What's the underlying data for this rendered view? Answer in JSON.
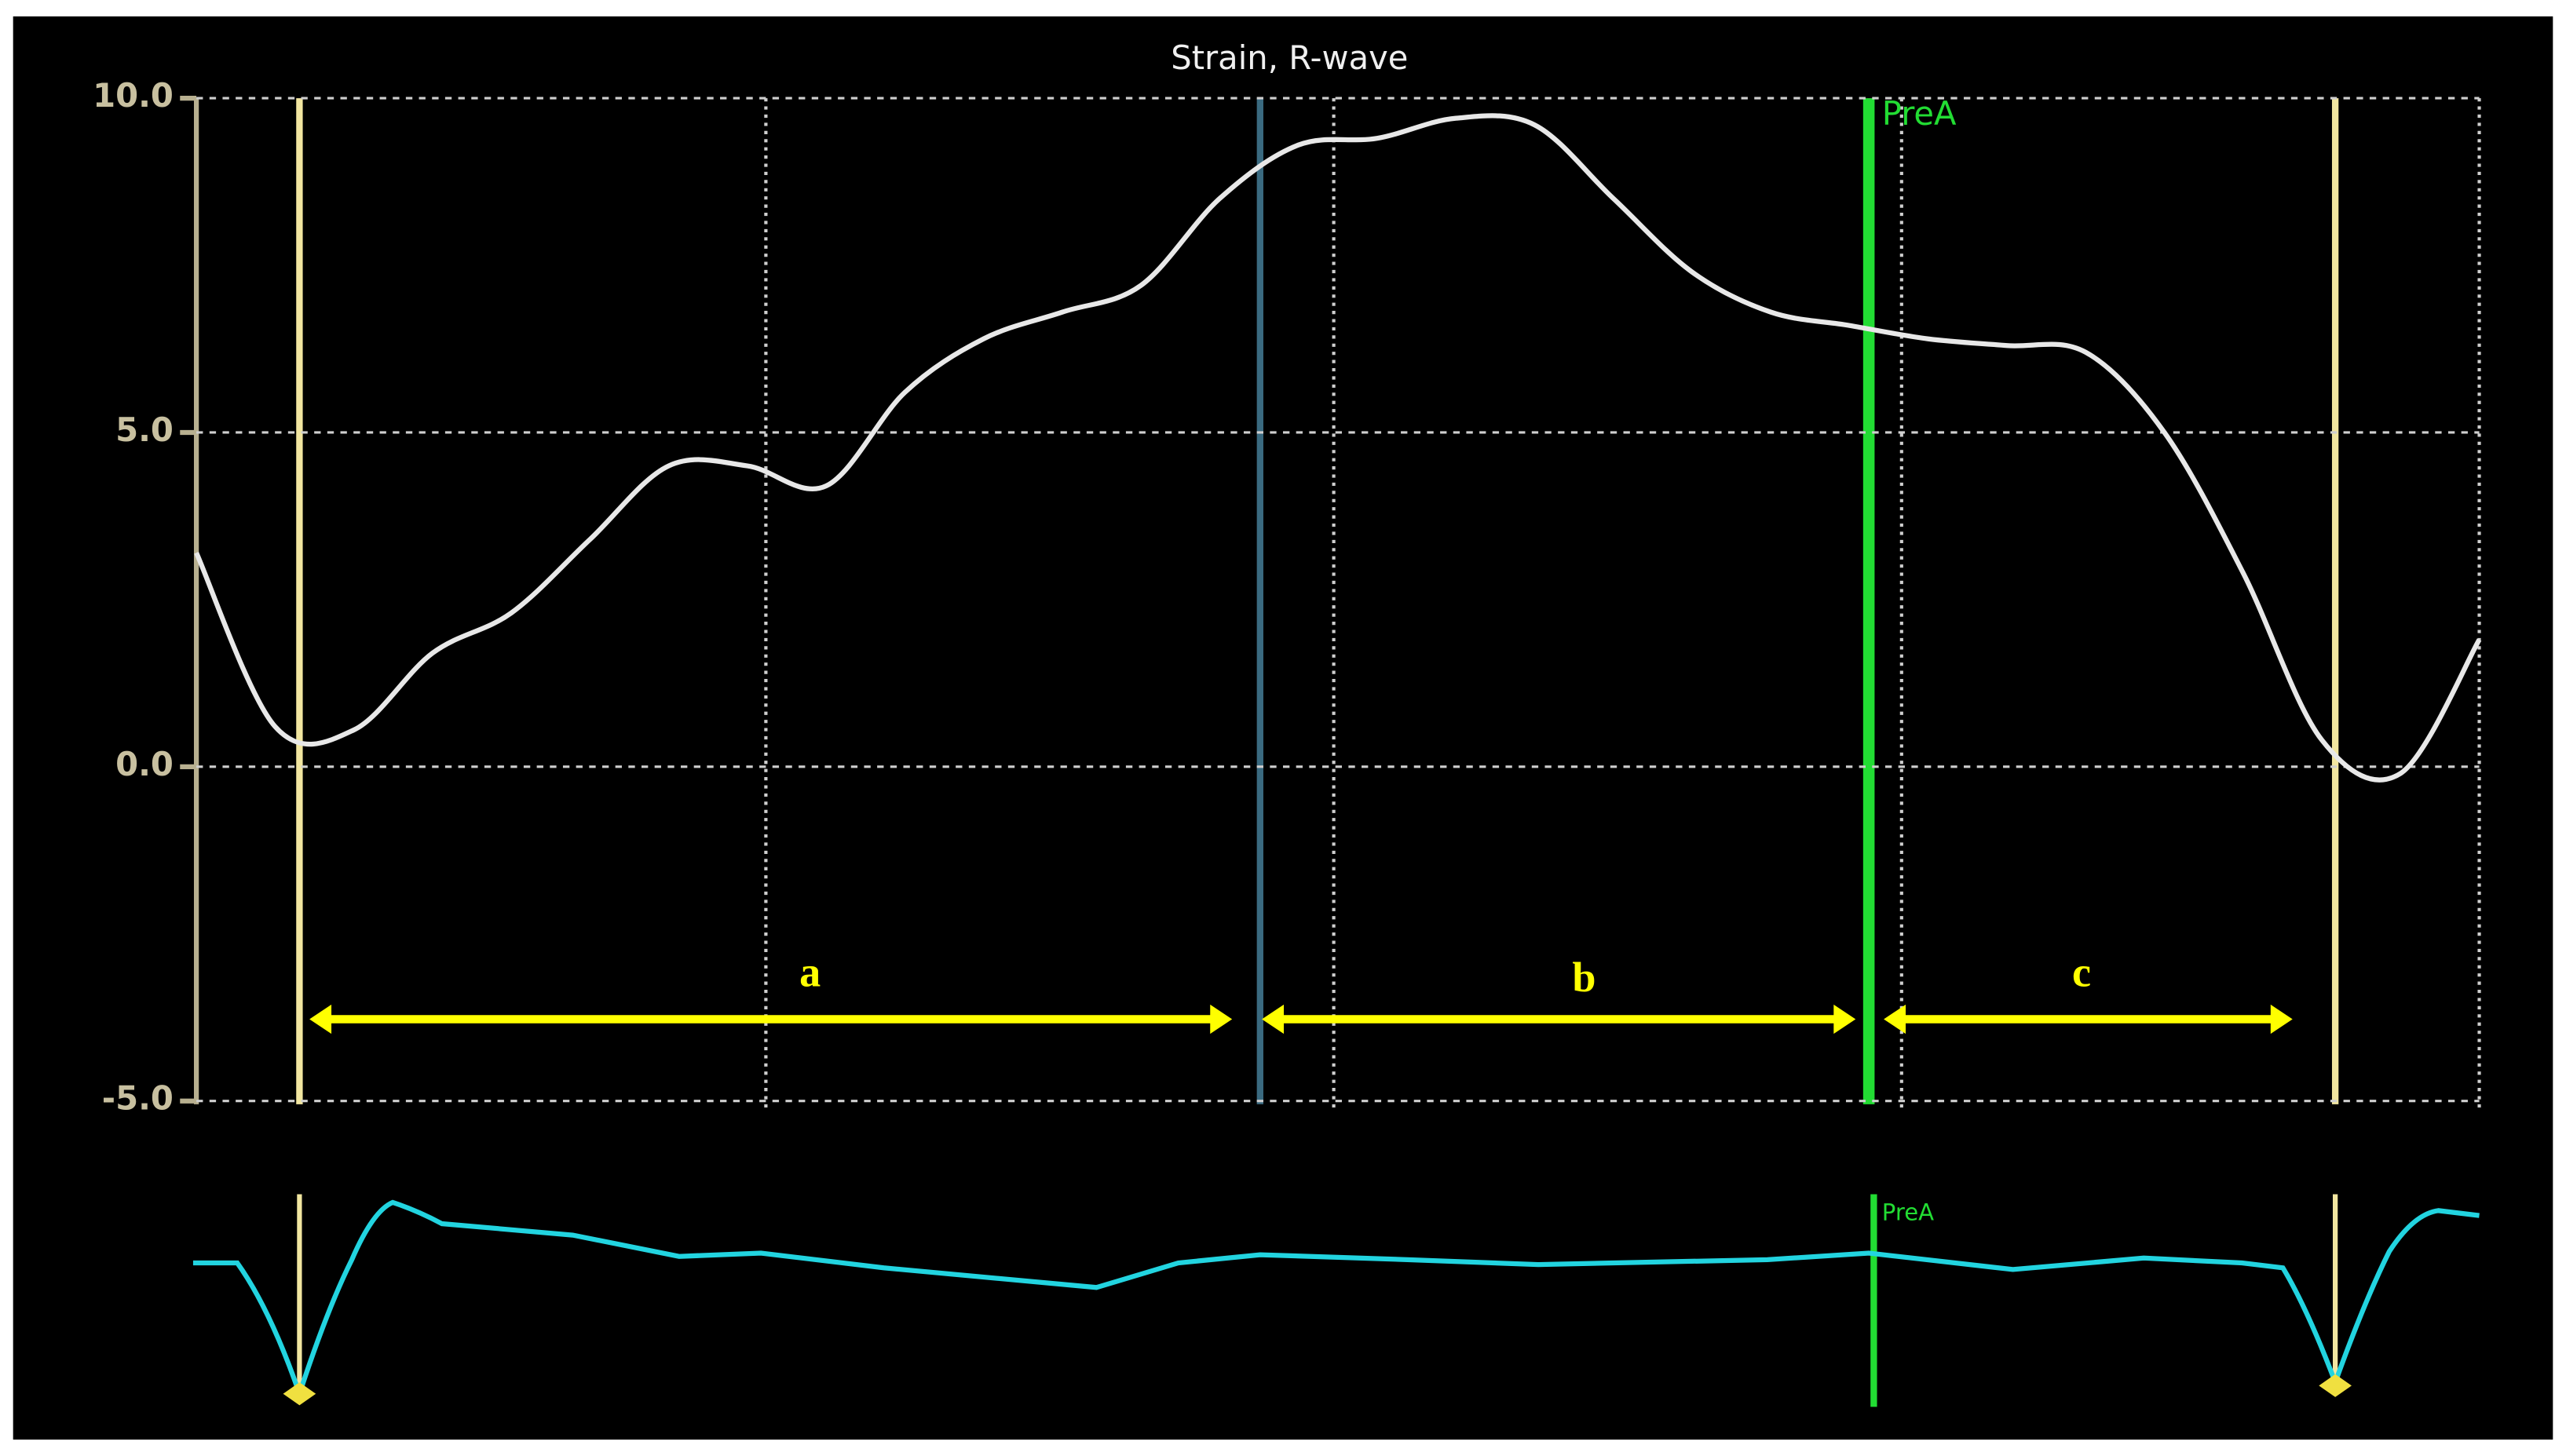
{
  "chart_data": {
    "type": "line",
    "title": "Strain, R-wave",
    "series": [
      {
        "color": "#e8e8e8",
        "values": [
          3.2,
          0.6,
          0.55,
          1.7,
          2.3,
          3.4,
          4.5,
          4.5,
          4.2,
          5.6,
          6.4,
          6.8,
          7.2,
          8.5,
          9.3,
          9.4,
          9.7,
          9.6,
          8.5,
          7.4,
          6.8,
          6.6,
          6.4,
          6.3,
          6.2,
          5.0,
          2.9,
          0.4,
          -0.1,
          1.9
        ]
      }
    ],
    "ylim": [
      -5,
      10
    ],
    "yticks": [
      {
        "value": 10,
        "label": "10.0"
      },
      {
        "value": 5,
        "label": "5.0"
      },
      {
        "value": 0,
        "label": "0.0"
      },
      {
        "value": -5,
        "label": "-5.0"
      }
    ],
    "grid": true,
    "annotations": [
      "PreA",
      "a",
      "b",
      "c",
      "PreA"
    ]
  }
}
